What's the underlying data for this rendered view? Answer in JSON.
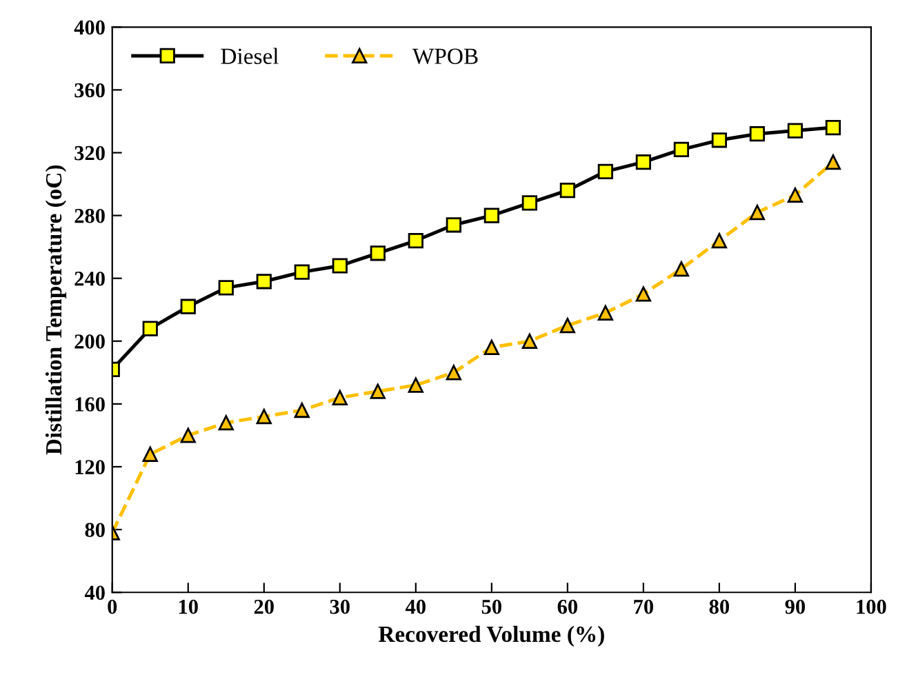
{
  "chart_data": {
    "type": "line",
    "xlabel": "Recovered Volume (%)",
    "ylabel": "Distillation Temperature (oC)",
    "x": [
      0,
      5,
      10,
      15,
      20,
      25,
      30,
      35,
      40,
      45,
      50,
      55,
      60,
      65,
      70,
      75,
      80,
      85,
      90,
      95
    ],
    "series": [
      {
        "name": "Diesel",
        "color": "#ffff00",
        "marker": "square",
        "line_style": "solid",
        "values": [
          182,
          208,
          222,
          234,
          238,
          244,
          248,
          256,
          264,
          274,
          280,
          288,
          296,
          308,
          314,
          322,
          328,
          332,
          334,
          336
        ]
      },
      {
        "name": "WPOB",
        "color": "#ffc000",
        "marker": "triangle",
        "line_style": "dashed",
        "values": [
          78,
          128,
          140,
          148,
          152,
          156,
          164,
          168,
          172,
          180,
          196,
          200,
          210,
          218,
          230,
          246,
          264,
          282,
          293,
          314
        ]
      }
    ],
    "xlim": [
      0,
      100
    ],
    "xticks": [
      0,
      10,
      20,
      30,
      40,
      50,
      60,
      70,
      80,
      90,
      100
    ],
    "ylim": [
      40,
      400
    ],
    "yticks": [
      40,
      80,
      120,
      160,
      200,
      240,
      280,
      320,
      360,
      400
    ],
    "grid": false,
    "legend": "top left"
  }
}
